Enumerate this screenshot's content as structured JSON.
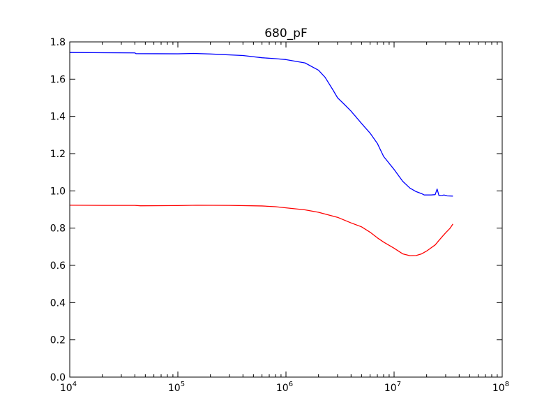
{
  "chart_data": {
    "type": "line",
    "title": "680_pF",
    "xlabel": "",
    "ylabel": "",
    "xscale": "log",
    "xlim": [
      10000,
      100000000
    ],
    "ylim": [
      0.0,
      1.8
    ],
    "grid": false,
    "x_ticks": [
      {
        "value": 10000,
        "base": "10",
        "exp": "4"
      },
      {
        "value": 100000,
        "base": "10",
        "exp": "5"
      },
      {
        "value": 1000000,
        "base": "10",
        "exp": "6"
      },
      {
        "value": 10000000,
        "base": "10",
        "exp": "7"
      },
      {
        "value": 100000000,
        "base": "10",
        "exp": "8"
      }
    ],
    "y_ticks": [
      {
        "value": 0.0,
        "label": "0.0"
      },
      {
        "value": 0.2,
        "label": "0.2"
      },
      {
        "value": 0.4,
        "label": "0.4"
      },
      {
        "value": 0.6,
        "label": "0.6"
      },
      {
        "value": 0.8,
        "label": "0.8"
      },
      {
        "value": 1.0,
        "label": "1.0"
      },
      {
        "value": 1.2,
        "label": "1.2"
      },
      {
        "value": 1.4,
        "label": "1.4"
      },
      {
        "value": 1.6,
        "label": "1.6"
      },
      {
        "value": 1.8,
        "label": "1.8"
      }
    ],
    "series": [
      {
        "color": "#0000ff",
        "points": [
          [
            10000,
            1.743
          ],
          [
            20000,
            1.742
          ],
          [
            40000,
            1.741
          ],
          [
            41000,
            1.737
          ],
          [
            100000,
            1.736
          ],
          [
            140000,
            1.738
          ],
          [
            200000,
            1.735
          ],
          [
            400000,
            1.727
          ],
          [
            600000,
            1.715
          ],
          [
            800000,
            1.71
          ],
          [
            1000000,
            1.705
          ],
          [
            1500000,
            1.687
          ],
          [
            2000000,
            1.648
          ],
          [
            2300000,
            1.61
          ],
          [
            2700000,
            1.545
          ],
          [
            3000000,
            1.5
          ],
          [
            3500000,
            1.462
          ],
          [
            4000000,
            1.428
          ],
          [
            5000000,
            1.362
          ],
          [
            6000000,
            1.31
          ],
          [
            7000000,
            1.255
          ],
          [
            8000000,
            1.185
          ],
          [
            10000000,
            1.115
          ],
          [
            12000000,
            1.052
          ],
          [
            14000000,
            1.015
          ],
          [
            16000000,
            0.996
          ],
          [
            18000000,
            0.985
          ],
          [
            19000000,
            0.978
          ],
          [
            22000000,
            0.978
          ],
          [
            24000000,
            0.98
          ],
          [
            25000000,
            1.01
          ],
          [
            26000000,
            0.975
          ],
          [
            28000000,
            0.976
          ],
          [
            29000000,
            0.978
          ],
          [
            31000000,
            0.973
          ],
          [
            35000000,
            0.972
          ]
        ]
      },
      {
        "color": "#ff0000",
        "points": [
          [
            10000,
            0.923
          ],
          [
            20000,
            0.922
          ],
          [
            40000,
            0.922
          ],
          [
            45000,
            0.92
          ],
          [
            100000,
            0.921
          ],
          [
            150000,
            0.923
          ],
          [
            300000,
            0.922
          ],
          [
            600000,
            0.919
          ],
          [
            800000,
            0.915
          ],
          [
            1000000,
            0.909
          ],
          [
            1500000,
            0.898
          ],
          [
            2000000,
            0.885
          ],
          [
            3000000,
            0.858
          ],
          [
            4000000,
            0.828
          ],
          [
            5000000,
            0.807
          ],
          [
            6000000,
            0.778
          ],
          [
            7000000,
            0.748
          ],
          [
            8000000,
            0.725
          ],
          [
            10000000,
            0.692
          ],
          [
            12000000,
            0.662
          ],
          [
            14000000,
            0.652
          ],
          [
            16000000,
            0.653
          ],
          [
            18000000,
            0.662
          ],
          [
            20000000,
            0.677
          ],
          [
            24000000,
            0.71
          ],
          [
            27000000,
            0.745
          ],
          [
            30000000,
            0.775
          ],
          [
            33000000,
            0.8
          ],
          [
            35000000,
            0.822
          ]
        ]
      }
    ]
  }
}
